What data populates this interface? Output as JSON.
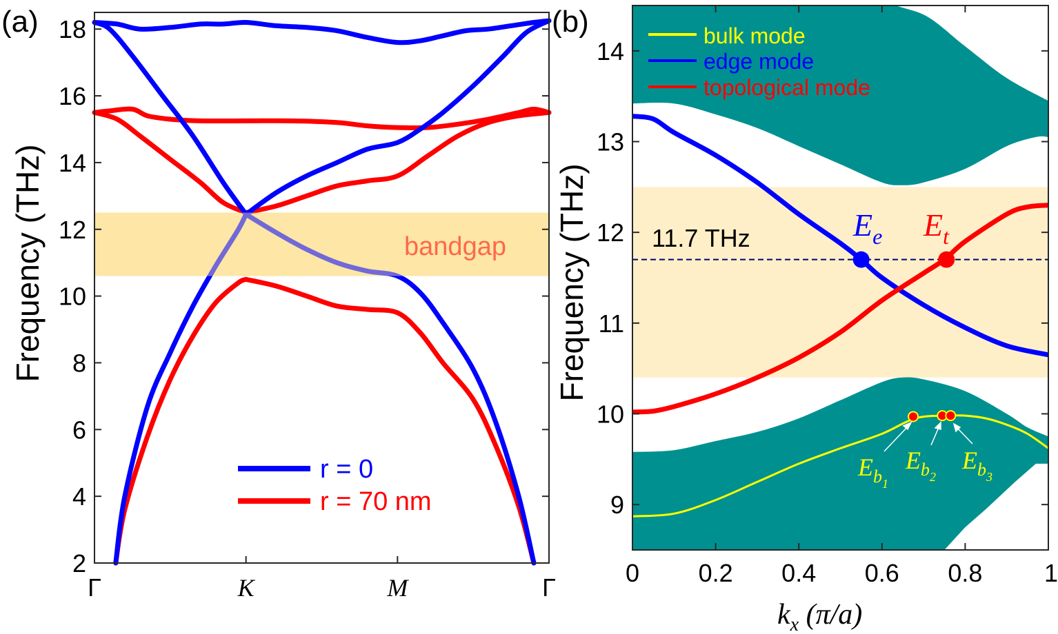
{
  "chart_data": [
    {
      "panel_label": "(a)",
      "type": "line",
      "ylabel": "Frequency (THz)",
      "xlabel": "",
      "x_ticks": [
        "Γ",
        "K",
        "M",
        "Γ"
      ],
      "x_tick_positions": [
        0,
        1,
        2,
        3
      ],
      "xlim": [
        0,
        3
      ],
      "ylim": [
        2,
        18.5
      ],
      "y_ticks": [
        2,
        4,
        6,
        8,
        10,
        12,
        14,
        16,
        18
      ],
      "shaded_band": {
        "label": "bandgap",
        "ymin": 10.6,
        "ymax": 12.5,
        "color": "#FDE6A6"
      },
      "legend": {
        "position": "bottom-right",
        "entries": [
          {
            "name": "r = 0",
            "color": "#0000FF"
          },
          {
            "name": "r = 70 nm",
            "color": "#FF0000"
          }
        ]
      },
      "series": [
        {
          "name": "r = 0",
          "color": "#0000FF",
          "x": [
            0,
            0.15,
            0.3,
            0.5,
            0.7,
            0.85,
            1.0,
            1.2,
            1.4,
            1.6,
            1.8,
            2.0,
            2.15,
            2.3,
            2.45,
            2.6,
            2.75,
            2.9,
            3.0
          ],
          "y": [
            18.2,
            18.15,
            18.0,
            18.05,
            18.15,
            18.15,
            18.2,
            18.1,
            18.05,
            17.95,
            17.75,
            17.6,
            17.65,
            17.8,
            17.95,
            18.0,
            18.1,
            18.2,
            18.25
          ]
        },
        {
          "name": "r = 0",
          "color": "#0000FF",
          "x": [
            0,
            0.1,
            0.25,
            0.45,
            0.65,
            0.85,
            1.0
          ],
          "y": [
            18.2,
            18.0,
            17.2,
            16.0,
            14.8,
            13.4,
            12.45
          ]
        },
        {
          "name": "r = 0",
          "color": "#0000FF",
          "x": [
            1.0,
            1.2,
            1.4,
            1.6,
            1.8,
            2.0,
            2.15,
            2.3,
            2.5,
            2.7,
            2.85,
            3.0
          ],
          "y": [
            12.45,
            13.1,
            13.6,
            14.0,
            14.4,
            14.6,
            15.0,
            15.5,
            16.3,
            17.2,
            17.9,
            18.25
          ]
        },
        {
          "name": "r = 0",
          "color": "#0000FF",
          "x": [
            0.14,
            0.2,
            0.35,
            0.5,
            0.65,
            0.8,
            0.95,
            1.0
          ],
          "y": [
            2.0,
            4.0,
            6.7,
            8.3,
            9.7,
            10.9,
            12.0,
            12.45
          ]
        },
        {
          "name": "r = 0",
          "color": "#0000FF",
          "x": [
            1.0,
            1.2,
            1.4,
            1.6,
            1.8,
            2.0,
            2.15,
            2.3,
            2.5,
            2.65,
            2.8,
            2.9
          ],
          "y": [
            12.45,
            11.9,
            11.4,
            11.0,
            10.75,
            10.6,
            10.1,
            9.2,
            7.8,
            6.2,
            4.0,
            2.0
          ]
        },
        {
          "name": "r = 70 nm",
          "color": "#FF0000",
          "x": [
            0,
            0.1,
            0.25,
            0.35,
            0.5,
            0.7,
            1.0,
            1.3,
            1.6,
            1.8,
            2.0,
            2.2,
            2.4,
            2.6,
            2.8,
            2.9,
            3.0
          ],
          "y": [
            15.5,
            15.55,
            15.6,
            15.4,
            15.3,
            15.25,
            15.25,
            15.25,
            15.2,
            15.1,
            15.05,
            15.05,
            15.15,
            15.3,
            15.5,
            15.6,
            15.5
          ]
        },
        {
          "name": "r = 70 nm",
          "color": "#FF0000",
          "x": [
            0,
            0.15,
            0.3,
            0.5,
            0.7,
            0.85,
            1.0
          ],
          "y": [
            15.5,
            15.3,
            14.8,
            14.1,
            13.4,
            12.8,
            12.5
          ]
        },
        {
          "name": "r = 70 nm",
          "color": "#FF0000",
          "x": [
            1.0,
            1.2,
            1.4,
            1.6,
            1.8,
            2.0,
            2.2,
            2.4,
            2.6,
            2.8,
            3.0
          ],
          "y": [
            12.5,
            12.7,
            13.0,
            13.3,
            13.45,
            13.6,
            14.2,
            14.8,
            15.2,
            15.4,
            15.5
          ]
        },
        {
          "name": "r = 70 nm",
          "color": "#FF0000",
          "x": [
            0.14,
            0.2,
            0.35,
            0.5,
            0.65,
            0.8,
            0.95,
            1.0
          ],
          "y": [
            2.0,
            3.6,
            5.8,
            7.5,
            8.8,
            9.8,
            10.4,
            10.5
          ]
        },
        {
          "name": "r = 70 nm",
          "color": "#FF0000",
          "x": [
            1.0,
            1.2,
            1.4,
            1.6,
            1.8,
            2.0,
            2.15,
            2.3,
            2.5,
            2.65,
            2.8,
            2.9
          ],
          "y": [
            10.5,
            10.3,
            10.0,
            9.7,
            9.6,
            9.5,
            8.9,
            8.0,
            6.9,
            5.5,
            3.7,
            2.0
          ]
        }
      ]
    },
    {
      "panel_label": "(b)",
      "type": "line",
      "ylabel": "Frequency (THz)",
      "xlabel": "k_x (π/a)",
      "xlabel_parts": {
        "k": "k",
        "sub": "x",
        "rest": " (π/a)"
      },
      "xlim": [
        0,
        1
      ],
      "ylim": [
        8.5,
        14.5
      ],
      "x_ticks": [
        0,
        0.2,
        0.4,
        0.6,
        0.8,
        1
      ],
      "x_tick_labels": [
        "0",
        "0.2",
        "0.4",
        "0.6",
        "0.8",
        "1"
      ],
      "y_ticks": [
        9,
        10,
        11,
        12,
        13,
        14
      ],
      "shaded_band": {
        "ymin": 10.4,
        "ymax": 12.5,
        "color": "#FFEFC8"
      },
      "bulk_bands": {
        "color": "#009090",
        "upper": {
          "x": [
            0,
            0.1,
            0.2,
            0.3,
            0.4,
            0.5,
            0.6,
            0.65,
            0.7,
            0.8,
            0.9,
            0.97,
            1.0
          ],
          "lower": [
            13.42,
            13.42,
            13.3,
            13.15,
            12.95,
            12.75,
            12.55,
            12.52,
            12.55,
            12.7,
            12.95,
            13.05,
            13.05
          ],
          "upper_edge": [
            14.5,
            14.5,
            14.5,
            14.5,
            14.5,
            14.5,
            14.5,
            14.5,
            14.5,
            14.5,
            14.5,
            14.5,
            14.5
          ],
          "top_right": {
            "x": [
              0.6,
              0.7,
              0.8,
              0.9,
              1.0
            ],
            "y": [
              14.5,
              14.4,
              14.05,
              13.7,
              13.45
            ]
          }
        },
        "lower": {
          "x": [
            0,
            0.1,
            0.2,
            0.3,
            0.4,
            0.5,
            0.6,
            0.65,
            0.7,
            0.8,
            0.9,
            0.95,
            1.0
          ],
          "upper_edge": [
            9.58,
            9.6,
            9.7,
            9.8,
            9.95,
            10.15,
            10.35,
            10.4,
            10.38,
            10.25,
            10.0,
            9.85,
            9.75
          ],
          "lower_edge": [
            8.5,
            8.5,
            8.5,
            8.5,
            8.5,
            8.5,
            8.5,
            8.5,
            8.5,
            8.8,
            9.2,
            9.45,
            9.45
          ]
        }
      },
      "reference_line": {
        "y": 11.7,
        "label": "11.7 THz",
        "color": "#00006E"
      },
      "legend": {
        "position": "top-left",
        "entries": [
          {
            "name": "bulk mode",
            "color": "#FFFF00"
          },
          {
            "name": "edge mode",
            "color": "#0000FF"
          },
          {
            "name": "topological mode",
            "color": "#FF0000"
          }
        ]
      },
      "series": [
        {
          "name": "edge mode",
          "color": "#0000FF",
          "x": [
            0,
            0.05,
            0.1,
            0.2,
            0.3,
            0.4,
            0.5,
            0.55,
            0.6,
            0.7,
            0.8,
            0.9,
            1.0
          ],
          "y": [
            13.28,
            13.25,
            13.1,
            12.85,
            12.55,
            12.2,
            11.88,
            11.7,
            11.5,
            11.2,
            10.95,
            10.75,
            10.65
          ]
        },
        {
          "name": "topological mode",
          "color": "#FF0000",
          "x": [
            0,
            0.05,
            0.1,
            0.2,
            0.3,
            0.4,
            0.5,
            0.6,
            0.7,
            0.75,
            0.8,
            0.9,
            0.95,
            1.0
          ],
          "y": [
            10.02,
            10.03,
            10.08,
            10.22,
            10.4,
            10.62,
            10.9,
            11.25,
            11.55,
            11.7,
            11.9,
            12.2,
            12.28,
            12.3
          ]
        },
        {
          "name": "bulk mode",
          "color": "#FFFF00",
          "x": [
            0,
            0.1,
            0.2,
            0.3,
            0.4,
            0.5,
            0.6,
            0.68,
            0.75,
            0.8,
            0.85,
            0.9,
            0.95,
            1.0
          ],
          "y": [
            8.87,
            8.9,
            9.05,
            9.25,
            9.45,
            9.62,
            9.78,
            9.95,
            9.98,
            9.98,
            9.95,
            9.88,
            9.78,
            9.62
          ]
        }
      ],
      "markers": [
        {
          "label_base": "E",
          "label_sub": "e",
          "x": 0.55,
          "y": 11.7,
          "color": "#0000FF",
          "size": "large"
        },
        {
          "label_base": "E",
          "label_sub": "t",
          "x": 0.755,
          "y": 11.7,
          "color": "#FF0000",
          "size": "large"
        },
        {
          "label_base": "E",
          "label_sub": "b",
          "label_subsub": "1",
          "x": 0.675,
          "y": 9.97,
          "color": "#FF0000",
          "edge": "#FFFF00",
          "size": "small"
        },
        {
          "label_base": "E",
          "label_sub": "b",
          "label_subsub": "2",
          "x": 0.745,
          "y": 9.98,
          "color": "#FF0000",
          "edge": "#FFFF00",
          "size": "small"
        },
        {
          "label_base": "E",
          "label_sub": "b",
          "label_subsub": "3",
          "x": 0.765,
          "y": 9.98,
          "color": "#FF0000",
          "edge": "#FFFF00",
          "size": "small"
        }
      ]
    }
  ]
}
